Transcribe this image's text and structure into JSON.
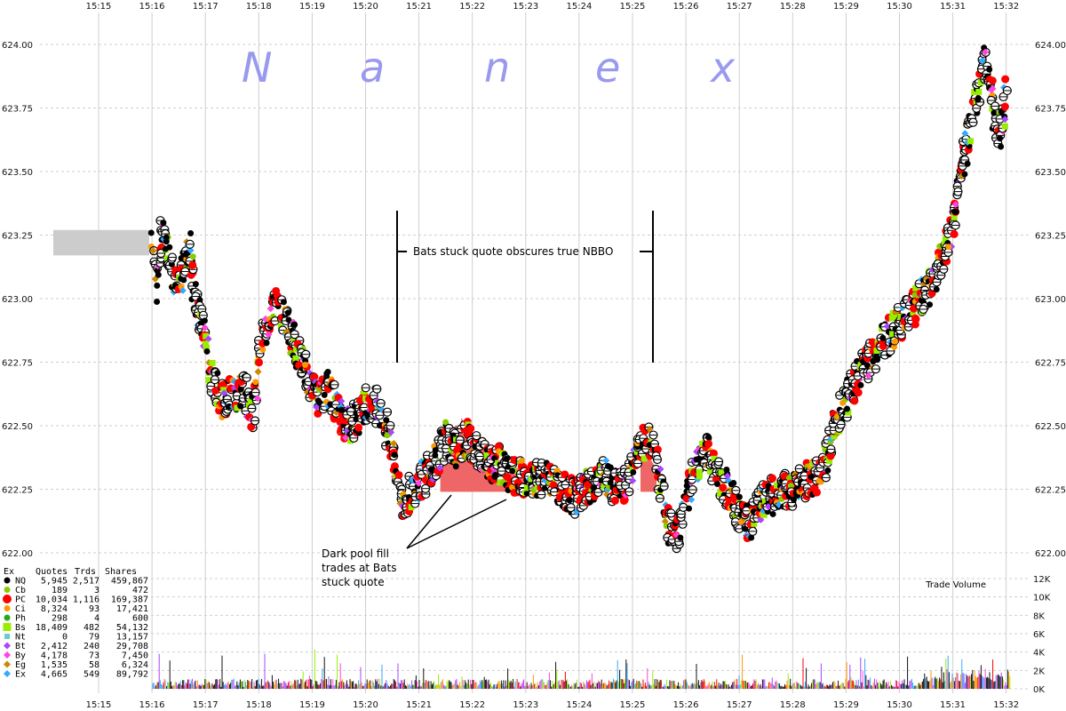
{
  "watermark": [
    "N",
    "a",
    "n",
    "e",
    "x"
  ],
  "annotations": {
    "stuck_quote": "Bats stuck quote obscures true NBBO",
    "dark_pool": [
      "Dark pool fill",
      "trades at Bats",
      "stuck quote"
    ]
  },
  "volume_title": "Trade Volume",
  "colors": {
    "grid": "#cfcfcf",
    "shade": "#cccccc",
    "stuck_fill": "#ee6666",
    "volume_bar": "#111111"
  },
  "legend": {
    "headers": [
      "Ex",
      "Quotes",
      "Trds",
      "Shares"
    ],
    "rows": [
      {
        "ex": "NQ",
        "quotes": "5,945",
        "trds": "2,517",
        "shares": "459,867",
        "color": "#000000",
        "shape": "circle"
      },
      {
        "ex": "Cb",
        "quotes": "189",
        "trds": "3",
        "shares": "472",
        "color": "#88cc00",
        "shape": "circle"
      },
      {
        "ex": "PC",
        "quotes": "10,034",
        "trds": "1,116",
        "shares": "169,387",
        "color": "#ff0000",
        "shape": "bigcircle"
      },
      {
        "ex": "Ci",
        "quotes": "8,324",
        "trds": "93",
        "shares": "17,421",
        "color": "#ff9900",
        "shape": "circle"
      },
      {
        "ex": "Ph",
        "quotes": "298",
        "trds": "4",
        "shares": "600",
        "color": "#22aa22",
        "shape": "circle"
      },
      {
        "ex": "Bs",
        "quotes": "18,409",
        "trds": "482",
        "shares": "54,132",
        "color": "#99ee00",
        "shape": "square"
      },
      {
        "ex": "Nt",
        "quotes": "0",
        "trds": "79",
        "shares": "13,157",
        "color": "#66cccc",
        "shape": "smallsquare"
      },
      {
        "ex": "Bt",
        "quotes": "2,412",
        "trds": "240",
        "shares": "29,708",
        "color": "#aa44ff",
        "shape": "diamond"
      },
      {
        "ex": "By",
        "quotes": "4,178",
        "trds": "73",
        "shares": "7,450",
        "color": "#ff44dd",
        "shape": "diamond"
      },
      {
        "ex": "Eg",
        "quotes": "1,535",
        "trds": "58",
        "shares": "6,324",
        "color": "#cc8800",
        "shape": "diamond"
      },
      {
        "ex": "Ex",
        "quotes": "4,665",
        "trds": "549",
        "shares": "89,792",
        "color": "#33aaff",
        "shape": "diamond"
      }
    ]
  },
  "chart_data": {
    "type": "scatter",
    "x_ticks": [
      "15:15",
      "15:16",
      "15:17",
      "15:18",
      "15:19",
      "15:20",
      "15:21",
      "15:22",
      "15:23",
      "15:24",
      "15:25",
      "15:26",
      "15:27",
      "15:28",
      "15:29",
      "15:30",
      "15:31",
      "15:32"
    ],
    "y_ticks": [
      "622.00",
      "622.25",
      "622.50",
      "622.75",
      "623.00",
      "623.25",
      "623.50",
      "623.75",
      "624.00"
    ],
    "ylim": [
      622.0,
      624.0
    ],
    "xlim_minutes": [
      15.0,
      32.0
    ],
    "price_path": [
      [
        16.0,
        623.2
      ],
      [
        16.1,
        623.05
      ],
      [
        16.2,
        623.3
      ],
      [
        16.3,
        623.15
      ],
      [
        16.5,
        623.05
      ],
      [
        16.7,
        623.2
      ],
      [
        16.8,
        623.0
      ],
      [
        17.0,
        622.85
      ],
      [
        17.1,
        622.7
      ],
      [
        17.3,
        622.6
      ],
      [
        17.5,
        622.62
      ],
      [
        17.7,
        622.65
      ],
      [
        17.9,
        622.55
      ],
      [
        18.0,
        622.8
      ],
      [
        18.2,
        622.9
      ],
      [
        18.3,
        622.98
      ],
      [
        18.5,
        622.92
      ],
      [
        18.7,
        622.8
      ],
      [
        18.9,
        622.7
      ],
      [
        19.1,
        622.6
      ],
      [
        19.3,
        622.65
      ],
      [
        19.5,
        622.55
      ],
      [
        19.7,
        622.5
      ],
      [
        19.9,
        622.55
      ],
      [
        20.1,
        622.6
      ],
      [
        20.3,
        622.55
      ],
      [
        20.5,
        622.4
      ],
      [
        20.7,
        622.2
      ],
      [
        20.9,
        622.25
      ],
      [
        21.1,
        622.3
      ],
      [
        21.3,
        622.35
      ],
      [
        21.5,
        622.45
      ],
      [
        21.7,
        622.4
      ],
      [
        21.9,
        622.45
      ],
      [
        22.1,
        622.4
      ],
      [
        22.3,
        622.35
      ],
      [
        22.5,
        622.35
      ],
      [
        22.7,
        622.3
      ],
      [
        22.9,
        622.3
      ],
      [
        23.1,
        622.28
      ],
      [
        23.3,
        622.3
      ],
      [
        23.5,
        622.28
      ],
      [
        23.7,
        622.25
      ],
      [
        23.9,
        622.22
      ],
      [
        24.1,
        622.25
      ],
      [
        24.3,
        622.28
      ],
      [
        24.5,
        622.3
      ],
      [
        24.7,
        622.25
      ],
      [
        24.9,
        622.28
      ],
      [
        25.1,
        622.4
      ],
      [
        25.3,
        622.45
      ],
      [
        25.5,
        622.3
      ],
      [
        25.7,
        622.1
      ],
      [
        25.8,
        622.05
      ],
      [
        26.0,
        622.2
      ],
      [
        26.2,
        622.35
      ],
      [
        26.4,
        622.4
      ],
      [
        26.6,
        622.3
      ],
      [
        26.8,
        622.25
      ],
      [
        27.0,
        622.15
      ],
      [
        27.2,
        622.12
      ],
      [
        27.4,
        622.2
      ],
      [
        27.6,
        622.22
      ],
      [
        27.8,
        622.25
      ],
      [
        28.0,
        622.25
      ],
      [
        28.2,
        622.28
      ],
      [
        28.4,
        622.3
      ],
      [
        28.6,
        622.35
      ],
      [
        28.8,
        622.5
      ],
      [
        29.0,
        622.6
      ],
      [
        29.2,
        622.7
      ],
      [
        29.4,
        622.75
      ],
      [
        29.6,
        622.8
      ],
      [
        29.8,
        622.85
      ],
      [
        30.0,
        622.9
      ],
      [
        30.2,
        622.95
      ],
      [
        30.4,
        623.0
      ],
      [
        30.6,
        623.05
      ],
      [
        30.8,
        623.15
      ],
      [
        31.0,
        623.3
      ],
      [
        31.2,
        623.55
      ],
      [
        31.4,
        623.75
      ],
      [
        31.5,
        623.85
      ],
      [
        31.6,
        623.95
      ],
      [
        31.7,
        623.85
      ],
      [
        31.8,
        623.7
      ],
      [
        31.9,
        623.65
      ],
      [
        32.0,
        623.8
      ]
    ],
    "volume": {
      "title": "Trade Volume",
      "y_ticks": [
        "0K",
        "2K",
        "4K",
        "6K",
        "8K",
        "10K",
        "12K"
      ],
      "ylim": [
        0,
        12000
      ]
    },
    "legend_placement": "bottom-left",
    "grid": true
  }
}
